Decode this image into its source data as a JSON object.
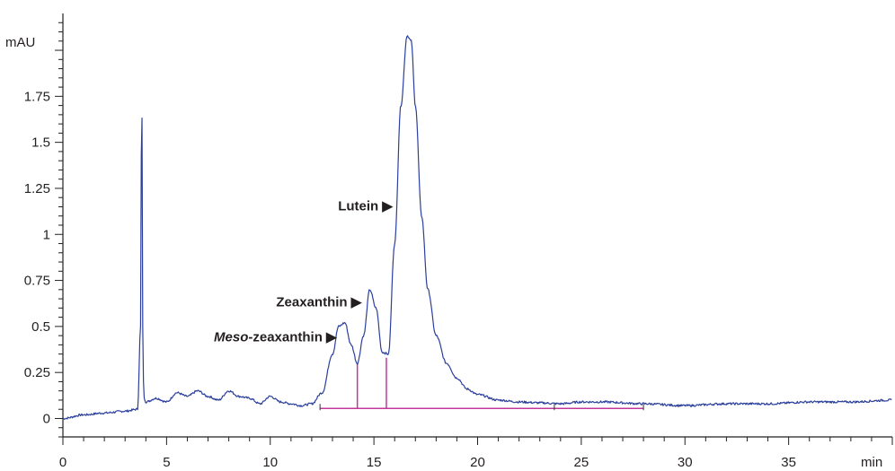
{
  "chart_data": {
    "type": "line",
    "title": "",
    "xlabel": "min",
    "ylabel": "mAU",
    "xlim": [
      0,
      40
    ],
    "ylim": [
      -0.1,
      2.2
    ],
    "grid": false,
    "x_ticks": [
      0,
      5,
      10,
      15,
      20,
      25,
      30,
      35
    ],
    "x_tick_labels": [
      "0",
      "5",
      "10",
      "15",
      "20",
      "25",
      "30",
      "35"
    ],
    "y_ticks": [
      0,
      0.25,
      0.5,
      0.75,
      1,
      1.25,
      1.5,
      1.75
    ],
    "y_tick_labels": [
      "0",
      "0.25",
      "0.5",
      "0.75",
      "1",
      "1.25",
      "1.5",
      "1.75"
    ],
    "colors": {
      "trace": "#2b3f9c",
      "integration": "#c2389a",
      "axis": "#231f20"
    },
    "series": [
      {
        "x": [
          0,
          1,
          2,
          3,
          3.6,
          3.75,
          3.8,
          3.85,
          3.9,
          4.0,
          4.5,
          5.0,
          5.5,
          6.0,
          6.5,
          7.0,
          7.5,
          8.0,
          8.5,
          9.0,
          9.5,
          10.0,
          10.5,
          11.0,
          11.5,
          12.0,
          12.5,
          13.0,
          13.3,
          13.6,
          13.9,
          14.2,
          14.5,
          14.8,
          15.1,
          15.4,
          15.7,
          16.0,
          16.3,
          16.6,
          16.8,
          17.0,
          17.3,
          17.6,
          18.0,
          18.5,
          19.0,
          19.5,
          20.0,
          21.0,
          22.0,
          23.0,
          24.0,
          25.0,
          26.0,
          28.0,
          30.0,
          32.0,
          34.0,
          36.0,
          38.0,
          40.0
        ],
        "y": [
          0.0,
          0.02,
          0.03,
          0.04,
          0.05,
          0.5,
          1.92,
          0.5,
          0.12,
          0.09,
          0.11,
          0.09,
          0.14,
          0.12,
          0.15,
          0.12,
          0.1,
          0.15,
          0.12,
          0.11,
          0.08,
          0.12,
          0.09,
          0.08,
          0.07,
          0.08,
          0.14,
          0.35,
          0.5,
          0.52,
          0.4,
          0.3,
          0.45,
          0.7,
          0.6,
          0.36,
          0.35,
          0.95,
          1.7,
          2.08,
          2.05,
          1.7,
          1.1,
          0.7,
          0.45,
          0.3,
          0.22,
          0.16,
          0.13,
          0.1,
          0.09,
          0.085,
          0.08,
          0.09,
          0.09,
          0.08,
          0.07,
          0.08,
          0.08,
          0.09,
          0.09,
          0.1
        ]
      }
    ],
    "integration": {
      "baseline_x": [
        12.4,
        28.0
      ],
      "baseline_y": 0.055,
      "drop_lines_x": [
        14.2,
        15.6
      ],
      "drop_lines_top_y": [
        0.3,
        0.33
      ],
      "tick_marks_x": [
        12.4,
        23.7,
        28.0
      ]
    },
    "annotations": [
      {
        "label_italic": "Meso",
        "label": "-zeaxanthin ▶",
        "x": 13.2,
        "y": 0.42
      },
      {
        "label": "Zeaxanthin ▶",
        "x": 14.4,
        "y": 0.61
      },
      {
        "label": "Lutein ▶",
        "x": 15.9,
        "y": 1.13
      }
    ]
  }
}
